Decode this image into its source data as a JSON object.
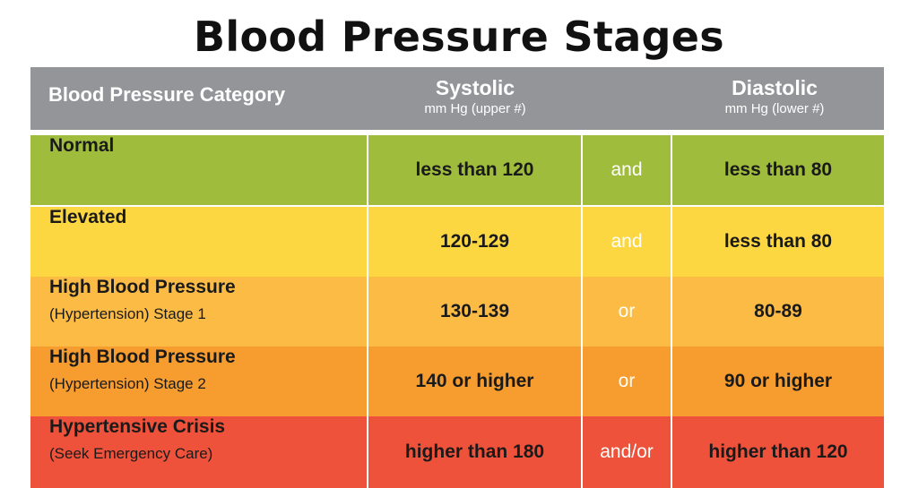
{
  "title": "Blood Pressure Stages",
  "header": {
    "category": "Blood Pressure Category",
    "systolic": "Systolic",
    "systolic_unit": "mm Hg (upper #)",
    "diastolic": "Diastolic",
    "diastolic_unit": "mm Hg (lower #)",
    "color": "#939598"
  },
  "rows": [
    {
      "category": "Normal",
      "note": "",
      "systolic": "less than 120",
      "conjunction": "and",
      "diastolic": "less than 80",
      "color": "#A0BC3C"
    },
    {
      "category": "Elevated",
      "note": "",
      "systolic": "120-129",
      "conjunction": "and",
      "diastolic": "less than 80",
      "color": "#FDD742"
    },
    {
      "category": "High Blood Pressure",
      "note": "(Hypertension) Stage 1",
      "systolic": "130-139",
      "conjunction": "or",
      "diastolic": "80-89",
      "color": "#FBBB44"
    },
    {
      "category": "High Blood Pressure",
      "note": "(Hypertension) Stage 2",
      "systolic": "140 or higher",
      "conjunction": "or",
      "diastolic": "90 or higher",
      "color": "#F79C2E"
    },
    {
      "category": "Hypertensive Crisis",
      "note": "(Seek Emergency Care)",
      "systolic": "higher than 180",
      "conjunction": "and/or",
      "diastolic": "higher than 120",
      "color": "#EE523B"
    }
  ]
}
